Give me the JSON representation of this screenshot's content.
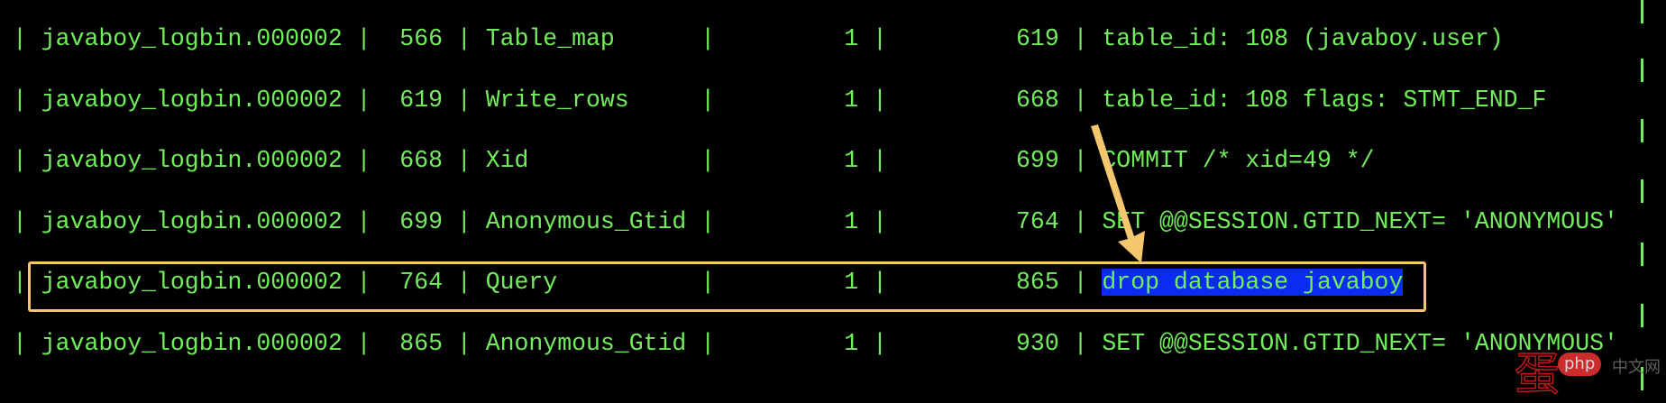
{
  "colors": {
    "text": "#72ee5c",
    "background": "#000000",
    "selection": "#0a2cf2",
    "annotation": "#f4c66e"
  },
  "rows": [
    {
      "log_name": "javaboy_logbin.000002",
      "pos": "566",
      "event_type": "Table_map",
      "server_id": "1",
      "end_log_pos": "619",
      "info": "table_id: 108 (javaboy.user)"
    },
    {
      "log_name": "javaboy_logbin.000002",
      "pos": "619",
      "event_type": "Write_rows",
      "server_id": "1",
      "end_log_pos": "668",
      "info": "table_id: 108 flags: STMT_END_F"
    },
    {
      "log_name": "javaboy_logbin.000002",
      "pos": "668",
      "event_type": "Xid",
      "server_id": "1",
      "end_log_pos": "699",
      "info": "COMMIT /* xid=49 */"
    },
    {
      "log_name": "javaboy_logbin.000002",
      "pos": "699",
      "event_type": "Anonymous_Gtid",
      "server_id": "1",
      "end_log_pos": "764",
      "info": "SET @@SESSION.GTID_NEXT= 'ANONYMOUS'"
    },
    {
      "log_name": "javaboy_logbin.000002",
      "pos": "764",
      "event_type": "Query",
      "server_id": "1",
      "end_log_pos": "865",
      "info": "drop database javaboy",
      "selected": true
    },
    {
      "log_name": "javaboy_logbin.000002",
      "pos": "865",
      "event_type": "Anonymous_Gtid",
      "server_id": "1",
      "end_log_pos": "930",
      "info": "SET @@SESSION.GTID_NEXT= 'ANONYMOUS'"
    }
  ],
  "pipe": "|",
  "watermark": {
    "glyph": "蛋",
    "badge": "php",
    "suffix": "中文网"
  }
}
